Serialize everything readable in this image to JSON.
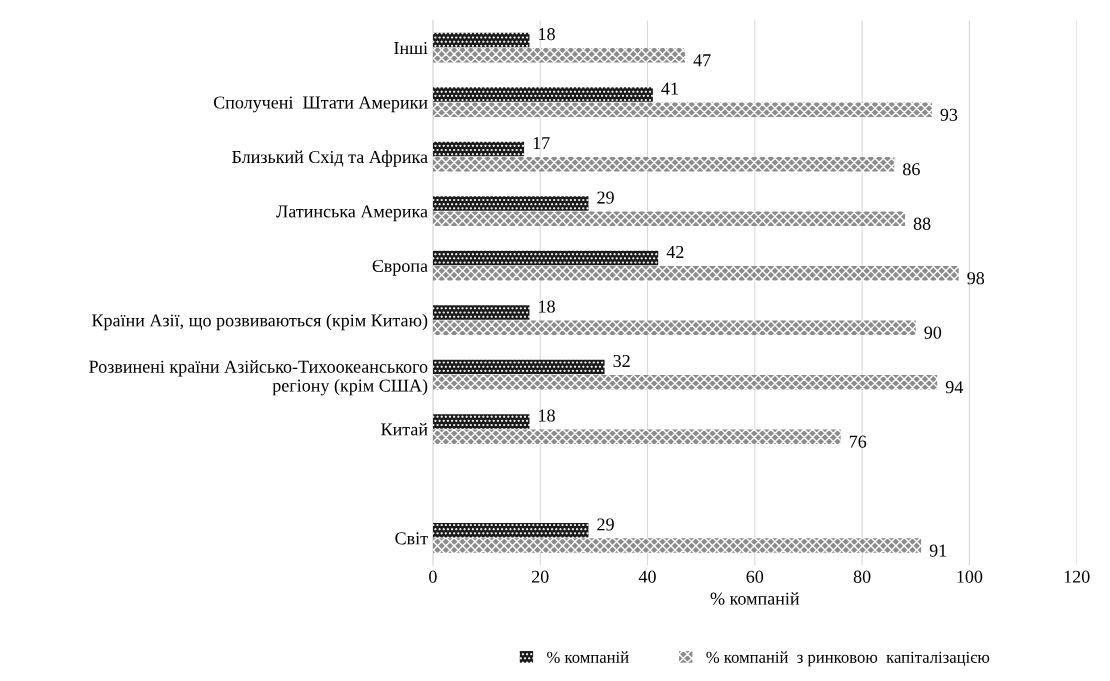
{
  "chart_data": {
    "type": "bar",
    "orientation": "horizontal",
    "xlabel": "% компаній",
    "categories": [
      "Інші",
      "Сполучені  Штати Америки",
      "Близький Схід та Африка",
      "Латинська Америка",
      "Європа",
      "Країни Азії, що розвиваються (крім Китаю)",
      "Розвинені країни Азійсько-Тихоокеанського\nрегіону (крім США)",
      "Китай",
      null,
      "Світ"
    ],
    "series": [
      {
        "name": "% компаній",
        "color": "#1a1a1a",
        "values": [
          18,
          41,
          17,
          29,
          42,
          18,
          32,
          18,
          null,
          29
        ]
      },
      {
        "name": "% компаній  з ринковою  капіталізацією",
        "color": "#8c8c8c",
        "values": [
          47,
          93,
          86,
          88,
          98,
          90,
          94,
          76,
          null,
          91
        ]
      }
    ],
    "xlim": [
      0,
      120
    ],
    "xticks": [
      0,
      20,
      40,
      60,
      80,
      100,
      120
    ],
    "grid": "x",
    "legend": "bottom",
    "data_labels": true
  }
}
